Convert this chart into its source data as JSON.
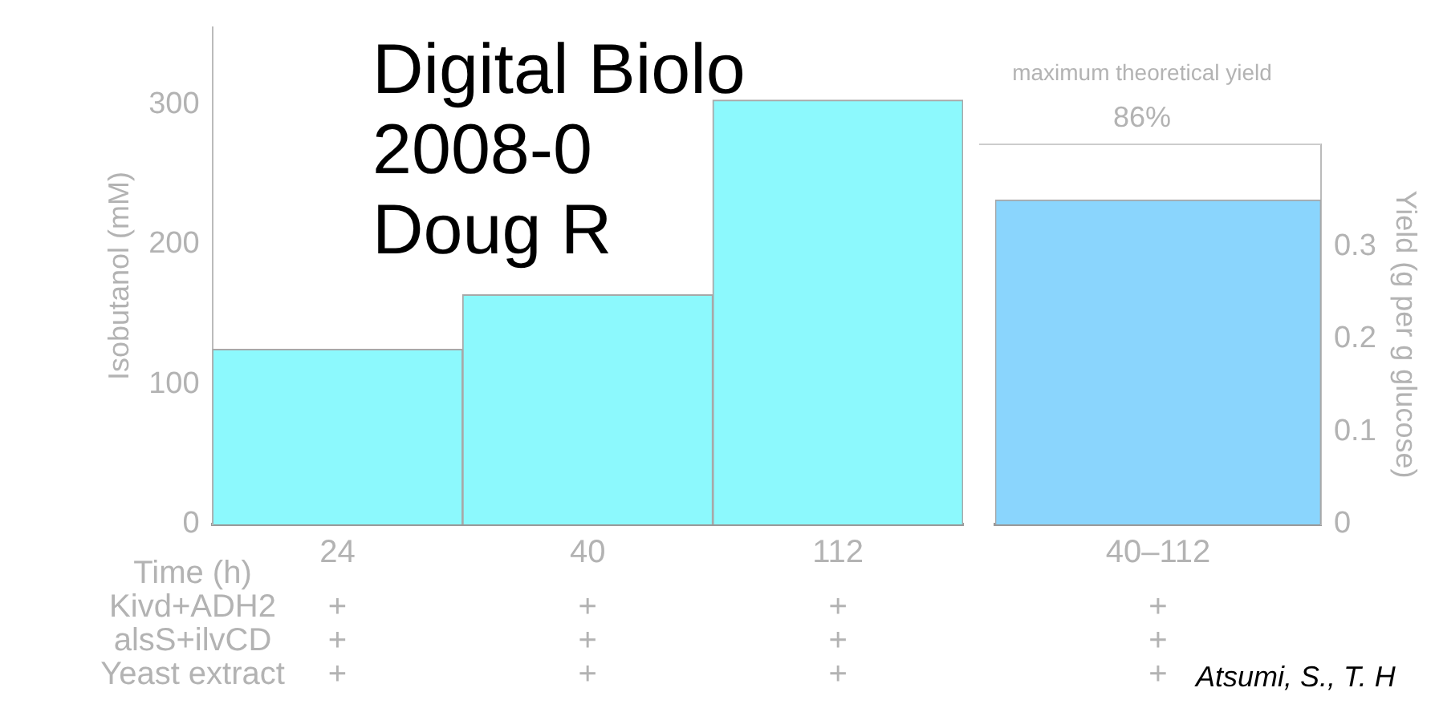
{
  "chart_data": [
    {
      "type": "bar",
      "categories": [
        "24",
        "40",
        "112"
      ],
      "xlabel": "Time (h)",
      "ylabel": "Isobutanol (mM)",
      "series": [
        {
          "color": "#8cf9fd",
          "values": [
            125,
            164,
            303
          ]
        }
      ],
      "ylim": [
        0,
        355
      ],
      "yticks": [
        0,
        100,
        200,
        300
      ],
      "grid": false,
      "legend": false,
      "annotations": [
        "Kivd+ADH2",
        "alsS+ilvCD",
        "Yeast extract",
        "+",
        "+",
        "+",
        "+",
        "+",
        "+",
        "+",
        "+",
        "+"
      ]
    },
    {
      "type": "bar",
      "categories": [
        "40–112"
      ],
      "y2label": "Yield (g per g glucose)",
      "series": [
        {
          "color": "#8ad5fd",
          "values": [
            0.35
          ],
          "axis": "y2"
        }
      ],
      "y2lim": [
        0,
        0.41
      ],
      "y2ticks": [
        0,
        0.1,
        0.2,
        0.3
      ],
      "grid": false,
      "legend": false,
      "ref_lines": [
        {
          "axis": "y2",
          "value": 0.41,
          "label": "maximum theoretical yield"
        }
      ],
      "annotations": [
        "86%",
        "Digital Biolo",
        "2008-0",
        "Doug R",
        "Atsumi, S., T. H",
        "+",
        "+",
        "+"
      ]
    }
  ]
}
